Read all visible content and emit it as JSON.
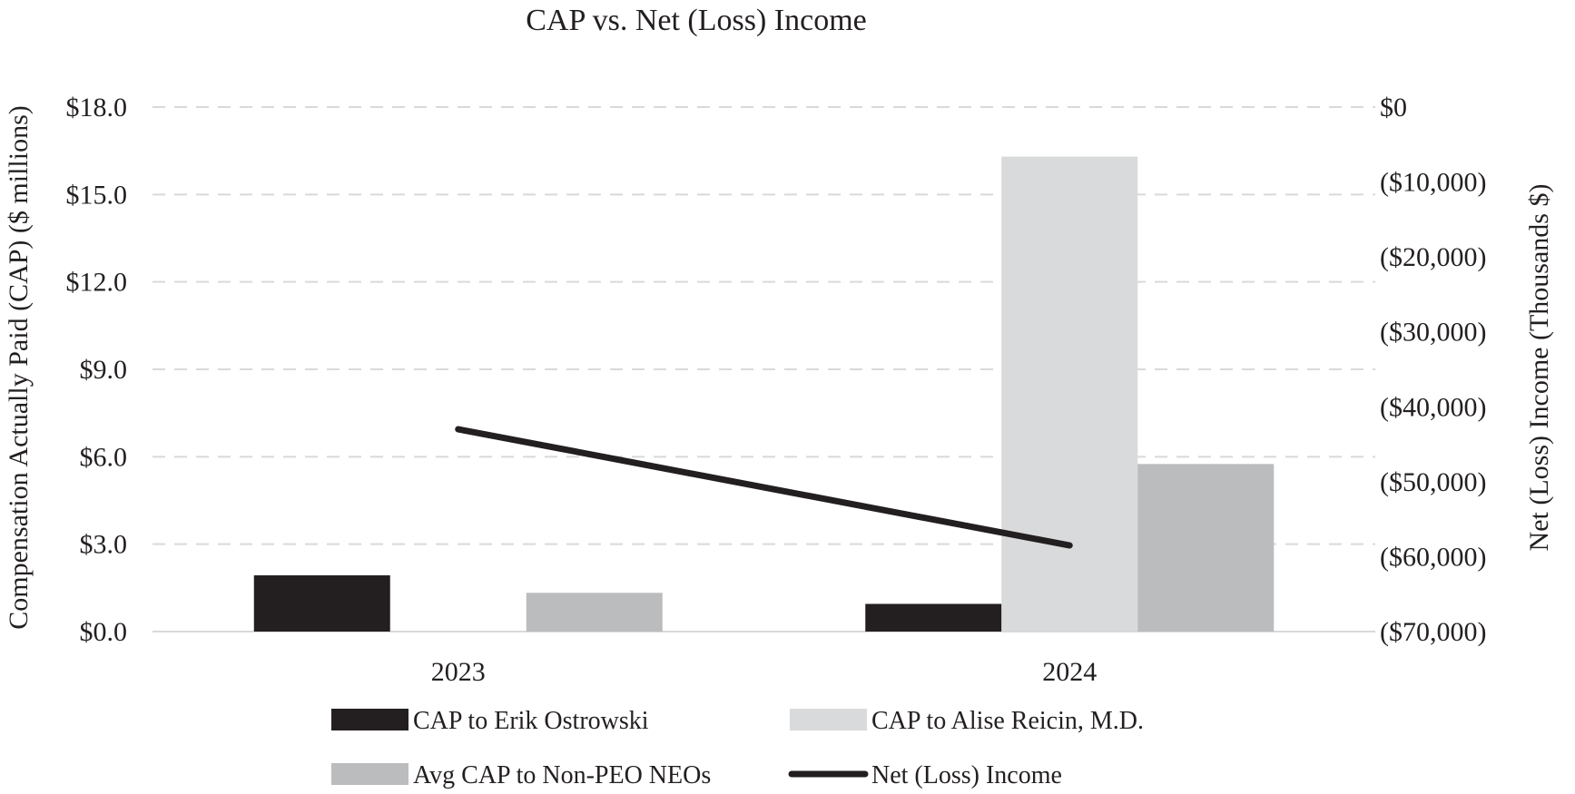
{
  "chart_data": {
    "type": "bar",
    "title": "CAP vs. Net (Loss) Income",
    "categories": [
      "2023",
      "2024"
    ],
    "ylabel": "Compensation Actually Paid (CAP) ($ millions)",
    "y2label": "Net (Loss) Income (Thousands $)",
    "ylim": [
      0,
      18
    ],
    "y2lim": [
      -70000,
      0
    ],
    "yticks": [
      "$0.0",
      "$3.0",
      "$6.0",
      "$9.0",
      "$12.0",
      "$15.0",
      "$18.0"
    ],
    "y2ticks": [
      "($70,000)",
      "($60,000)",
      "($50,000)",
      "($40,000)",
      "($30,000)",
      "($20,000)",
      "($10,000)",
      "$0"
    ],
    "grid": true,
    "legend_position": "bottom",
    "series": [
      {
        "name": "CAP to Erik Ostrowski",
        "kind": "bar",
        "axis": "left",
        "color": "#231f20",
        "values": [
          1.93,
          0.95
        ]
      },
      {
        "name": "CAP to Alise Reicin, M.D.",
        "kind": "bar",
        "axis": "left",
        "color": "#d9dadb",
        "values": [
          0,
          16.3
        ]
      },
      {
        "name": "Avg CAP to Non-PEO NEOs",
        "kind": "bar",
        "axis": "left",
        "color": "#bbbcbd",
        "values": [
          1.33,
          5.75
        ]
      },
      {
        "name": "Net (Loss) Income",
        "kind": "line",
        "axis": "right",
        "color": "#231f20",
        "values": [
          -43000,
          -58500
        ]
      }
    ]
  }
}
